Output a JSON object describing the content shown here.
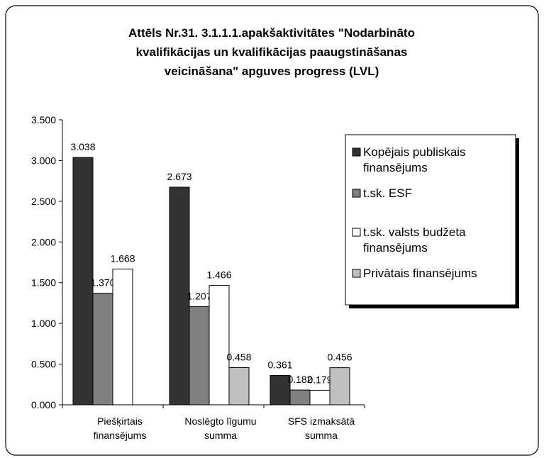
{
  "chart_data": {
    "type": "bar",
    "title": [
      "Attēls Nr.31. 3.1.1.1.apakšaktivitātes \"Nodarbināto",
      "kvalifikācijas un kvalifikācijas paaugstināšanas",
      "veicināšana\"  apguves progress (LVL)"
    ],
    "categories": [
      [
        "Piešķirtais",
        "finansējums"
      ],
      [
        "Noslēgto līgumu",
        "summa"
      ],
      [
        "SFS izmaksātā",
        "summa"
      ]
    ],
    "series": [
      {
        "name": [
          "Kopējais publiskais",
          "finansējums"
        ],
        "color": "#333333",
        "values": [
          3.038,
          2.673,
          0.361
        ],
        "value_labels": [
          "3.038",
          "2.673",
          "0.361"
        ]
      },
      {
        "name": [
          "t.sk. ESF"
        ],
        "color": "#808080",
        "values": [
          1.37,
          1.207,
          0.182
        ],
        "value_labels": [
          "1.370",
          "1.207",
          "0.182"
        ]
      },
      {
        "name": [
          "t.sk. valsts budžeta",
          "finansējums"
        ],
        "color": "#ffffff",
        "values": [
          1.668,
          1.466,
          0.179
        ],
        "value_labels": [
          "1.668",
          "1.466",
          "0.179"
        ]
      },
      {
        "name": [
          "Privātais finansējums"
        ],
        "color": "#c0c0c0",
        "values": [
          null,
          0.458,
          0.456
        ],
        "value_labels": [
          null,
          "0.458",
          "0.456"
        ]
      }
    ],
    "ylim": [
      0,
      3.5
    ],
    "yticks": [
      {
        "value": 0,
        "label": "0.000"
      },
      {
        "value": 0.5,
        "label": "0.500"
      },
      {
        "value": 1,
        "label": "1.000"
      },
      {
        "value": 1.5,
        "label": "1.500"
      },
      {
        "value": 2,
        "label": "2.000"
      },
      {
        "value": 2.5,
        "label": "2.500"
      },
      {
        "value": 3,
        "label": "3.000"
      },
      {
        "value": 3.5,
        "label": "3.500"
      }
    ],
    "legend": "right"
  }
}
